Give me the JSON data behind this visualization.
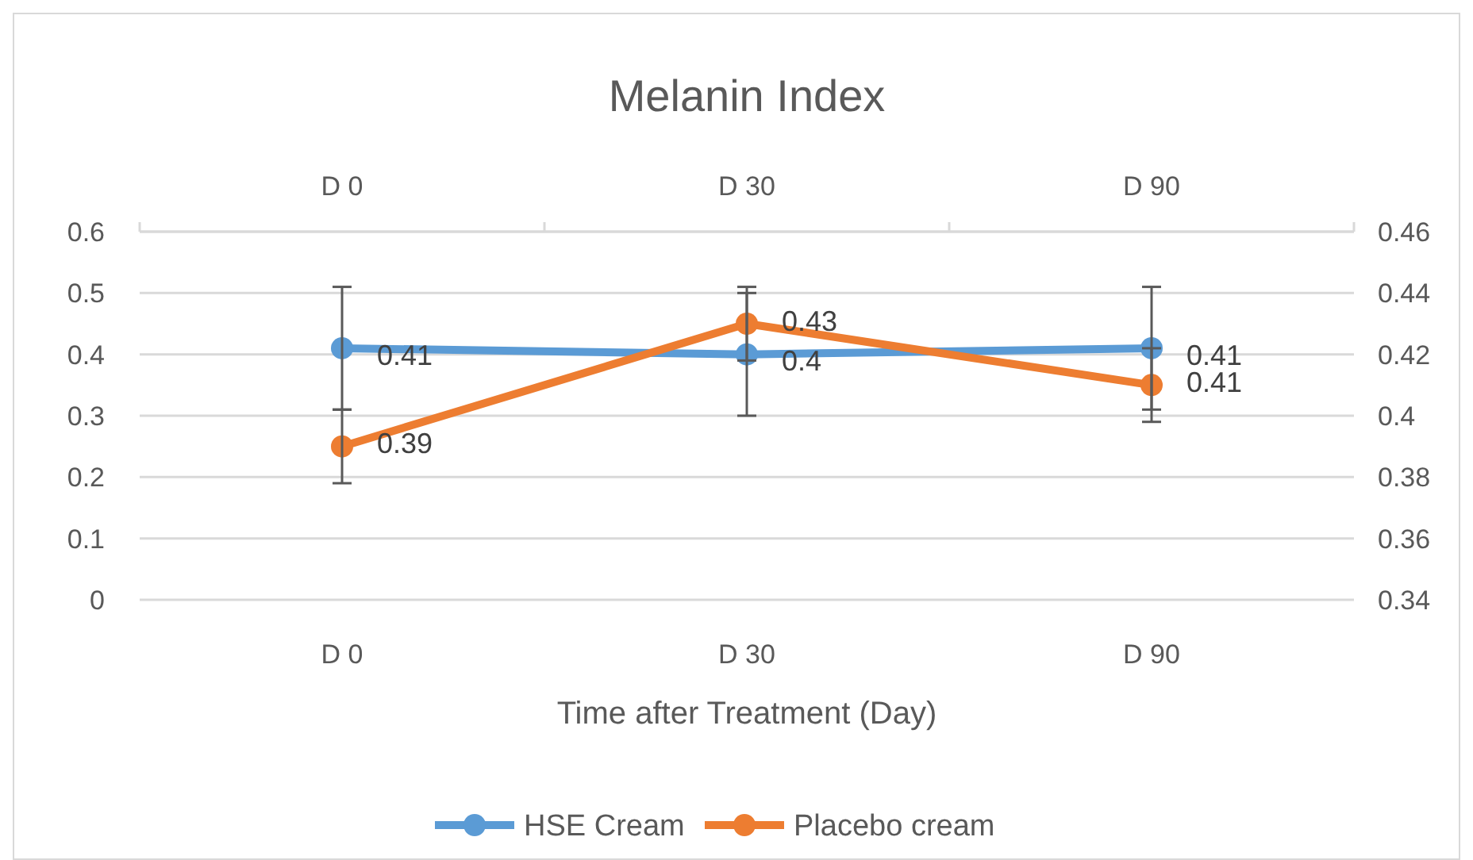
{
  "chart_data": {
    "type": "line",
    "title": "Melanin Index",
    "xlabel": "Time after Treatment (Day)",
    "categories": [
      "D 0",
      "D 30",
      "D 90"
    ],
    "series": [
      {
        "name": "HSE Cream",
        "color": "#5b9bd5",
        "values": [
          0.41,
          0.4,
          0.41
        ],
        "errors": [
          0.1,
          0.1,
          0.1
        ]
      },
      {
        "name": "Placebo cream",
        "color": "#ed7d31",
        "values": [
          0.39,
          0.43,
          0.41
        ],
        "errors": [
          0.012,
          0.012,
          0.012
        ],
        "axis": "y2"
      }
    ],
    "ylim": [
      0,
      0.6
    ],
    "yticks": [
      0,
      0.1,
      0.2,
      0.3,
      0.4,
      0.5,
      0.6
    ],
    "y2lim": [
      0.34,
      0.46
    ],
    "y2ticks": [
      0.34,
      0.36,
      0.38,
      {
        "value": 0.4,
        "label": "0.4"
      },
      0.42,
      0.44,
      0.46
    ],
    "grid": "y",
    "legend": "bottom",
    "marker": "circle",
    "line_style": "solid",
    "data_labels": true
  }
}
